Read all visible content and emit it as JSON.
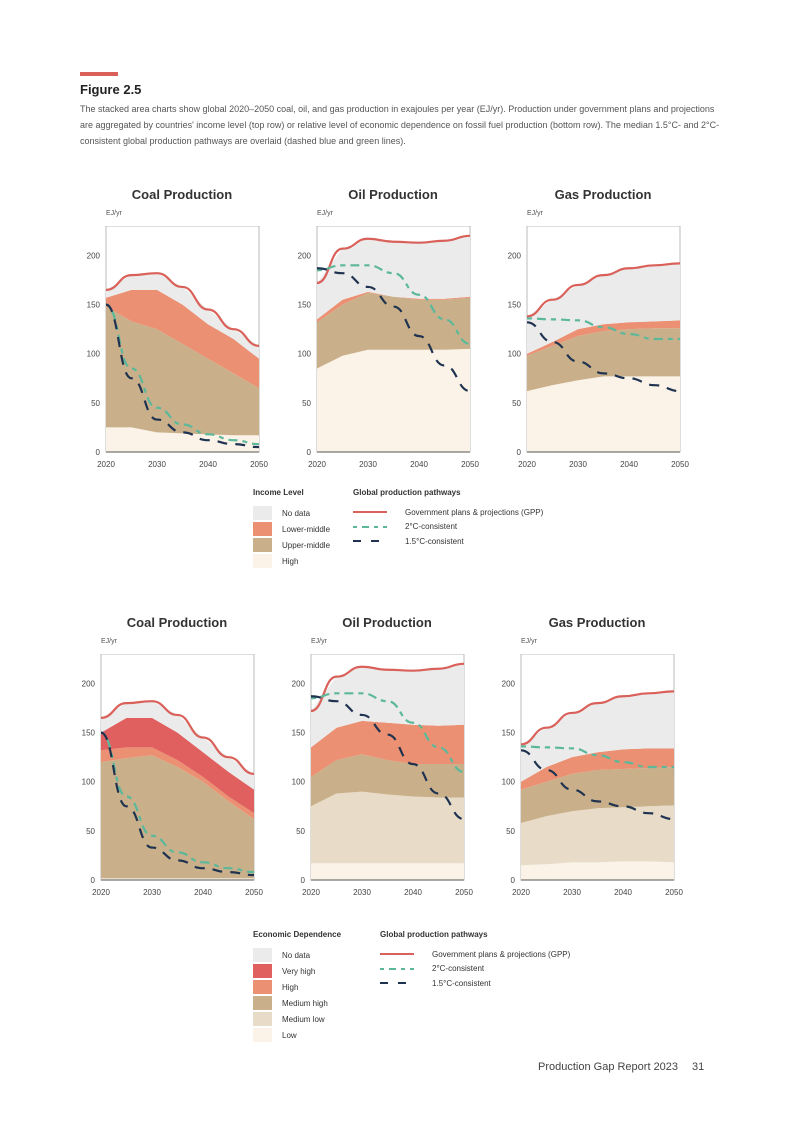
{
  "figure": {
    "label": "Figure 2.5",
    "caption": "The stacked area charts show global 2020–2050 coal, oil, and gas production in exajoules per year (EJ/yr). Production under government plans and projections are aggregated by countries' income level (top row) or relative level of economic dependence on fossil fuel production (bottom row). The median 1.5°C- and 2°C-consistent global production pathways are overlaid (dashed blue and green lines)."
  },
  "colors": {
    "no_data": "#ebebeb",
    "very_high": "#e0605f",
    "lower_middle": "#eb9072",
    "upper_middle": "#c9b08a",
    "medium_low": "#e8dcc8",
    "high_low": "#fbf3e8",
    "gpp": "#d9615a",
    "c2": "#5cb89a",
    "c15": "#1f3350"
  },
  "legend_top": {
    "title": "Income Level",
    "items": [
      "No data",
      "Lower-middle",
      "Upper-middle",
      "High"
    ]
  },
  "legend_bottom": {
    "title": "Economic Dependence",
    "items": [
      "No data",
      "Very high",
      "High",
      "Medium high",
      "Medium low",
      "Low"
    ]
  },
  "pathways": {
    "title": "Global production pathways",
    "gpp": "Government plans & projections (GPP)",
    "c2": "2°C-consistent",
    "c15": "1.5°C-consistent"
  },
  "footer": {
    "report": "Production Gap Report 2023",
    "page": "31"
  },
  "chart_data": [
    {
      "type": "area",
      "title": "Coal Production",
      "ylabel": "EJ/yr",
      "x": [
        2020,
        2025,
        2030,
        2035,
        2040,
        2045,
        2050
      ],
      "ylim": [
        0,
        230
      ],
      "yticks": [
        0,
        50,
        100,
        150,
        200
      ],
      "xticks": [
        2020,
        2030,
        2040,
        2050
      ],
      "layers": [
        {
          "name": "High",
          "color": "high_low",
          "values": [
            25,
            25,
            20,
            19,
            18,
            17,
            17
          ]
        },
        {
          "name": "Upper-middle",
          "color": "upper_middle",
          "values": [
            123,
            108,
            105,
            91,
            77,
            63,
            48
          ]
        },
        {
          "name": "Lower-middle",
          "color": "lower_middle",
          "values": [
            9,
            32,
            40,
            40,
            35,
            35,
            30
          ]
        },
        {
          "name": "No data",
          "color": "no_data",
          "values": [
            8,
            15,
            17,
            18,
            15,
            10,
            13
          ]
        }
      ],
      "lines": {
        "gpp": [
          165,
          180,
          182,
          168,
          145,
          125,
          108
        ],
        "c2": [
          150,
          85,
          45,
          28,
          18,
          12,
          8
        ],
        "c15": [
          150,
          75,
          33,
          20,
          12,
          8,
          5
        ]
      }
    },
    {
      "type": "area",
      "title": "Oil Production",
      "ylabel": "EJ/yr",
      "x": [
        2020,
        2025,
        2030,
        2035,
        2040,
        2045,
        2050
      ],
      "ylim": [
        0,
        230
      ],
      "yticks": [
        0,
        50,
        100,
        150,
        200
      ],
      "xticks": [
        2020,
        2030,
        2040,
        2050
      ],
      "layers": [
        {
          "name": "High",
          "color": "high_low",
          "values": [
            85,
            98,
            104,
            104,
            104,
            104,
            105
          ]
        },
        {
          "name": "Upper-middle",
          "color": "upper_middle",
          "values": [
            47,
            52,
            58,
            54,
            51,
            51,
            52
          ]
        },
        {
          "name": "Lower-middle",
          "color": "lower_middle",
          "values": [
            3,
            5,
            1,
            0,
            1,
            1,
            1
          ]
        },
        {
          "name": "No data",
          "color": "no_data",
          "values": [
            37,
            52,
            54,
            56,
            57,
            59,
            62
          ]
        }
      ],
      "lines": {
        "gpp": [
          172,
          207,
          217,
          214,
          213,
          215,
          220
        ],
        "c2": [
          185,
          190,
          190,
          182,
          160,
          135,
          110
        ],
        "c15": [
          187,
          182,
          168,
          148,
          118,
          88,
          62
        ]
      }
    },
    {
      "type": "area",
      "title": "Gas Production",
      "ylabel": "EJ/yr",
      "x": [
        2020,
        2025,
        2030,
        2035,
        2040,
        2045,
        2050
      ],
      "ylim": [
        0,
        230
      ],
      "yticks": [
        0,
        50,
        100,
        150,
        200
      ],
      "xticks": [
        2020,
        2030,
        2040,
        2050
      ],
      "layers": [
        {
          "name": "High",
          "color": "high_low",
          "values": [
            62,
            68,
            73,
            77,
            77,
            77,
            77
          ]
        },
        {
          "name": "Upper-middle",
          "color": "upper_middle",
          "values": [
            36,
            40,
            45,
            46,
            48,
            49,
            49
          ]
        },
        {
          "name": "Lower-middle",
          "color": "lower_middle",
          "values": [
            2,
            4,
            7,
            7,
            7,
            7,
            8
          ]
        },
        {
          "name": "No data",
          "color": "no_data",
          "values": [
            38,
            43,
            45,
            50,
            55,
            57,
            58
          ]
        }
      ],
      "lines": {
        "gpp": [
          138,
          155,
          170,
          180,
          187,
          190,
          192
        ],
        "c2": [
          136,
          135,
          134,
          127,
          120,
          115,
          115
        ],
        "c15": [
          132,
          112,
          92,
          80,
          75,
          68,
          62
        ]
      }
    },
    {
      "type": "area",
      "title": "Coal Production",
      "ylabel": "EJ/yr",
      "x": [
        2020,
        2025,
        2030,
        2035,
        2040,
        2045,
        2050
      ],
      "ylim": [
        0,
        230
      ],
      "yticks": [
        0,
        50,
        100,
        150,
        200
      ],
      "xticks": [
        2020,
        2030,
        2040,
        2050
      ],
      "layers": [
        {
          "name": "Low",
          "color": "high_low",
          "values": [
            1,
            1,
            1,
            1,
            1,
            1,
            1
          ]
        },
        {
          "name": "Medium low",
          "color": "medium_low",
          "values": [
            1,
            1,
            1,
            1,
            1,
            1,
            1
          ]
        },
        {
          "name": "Medium high",
          "color": "upper_middle",
          "values": [
            118,
            122,
            125,
            113,
            98,
            78,
            60
          ]
        },
        {
          "name": "High",
          "color": "lower_middle",
          "values": [
            12,
            11,
            8,
            7,
            5,
            5,
            6
          ]
        },
        {
          "name": "Very high",
          "color": "very_high",
          "values": [
            18,
            30,
            30,
            28,
            25,
            25,
            24
          ]
        },
        {
          "name": "No data",
          "color": "no_data",
          "values": [
            15,
            15,
            17,
            18,
            15,
            15,
            16
          ]
        }
      ],
      "lines": {
        "gpp": [
          165,
          180,
          182,
          168,
          145,
          125,
          108
        ],
        "c2": [
          150,
          85,
          45,
          28,
          18,
          12,
          8
        ],
        "c15": [
          150,
          75,
          33,
          20,
          12,
          8,
          5
        ]
      }
    },
    {
      "type": "area",
      "title": "Oil Production",
      "ylabel": "EJ/yr",
      "x": [
        2020,
        2025,
        2030,
        2035,
        2040,
        2045,
        2050
      ],
      "ylim": [
        0,
        230
      ],
      "yticks": [
        0,
        50,
        100,
        150,
        200
      ],
      "xticks": [
        2020,
        2030,
        2040,
        2050
      ],
      "layers": [
        {
          "name": "Low",
          "color": "high_low",
          "values": [
            17,
            17,
            17,
            17,
            17,
            17,
            17
          ]
        },
        {
          "name": "Medium low",
          "color": "medium_low",
          "values": [
            58,
            71,
            73,
            70,
            68,
            67,
            67
          ]
        },
        {
          "name": "Medium high",
          "color": "upper_middle",
          "values": [
            30,
            34,
            38,
            35,
            33,
            34,
            34
          ]
        },
        {
          "name": "High",
          "color": "lower_middle",
          "values": [
            30,
            33,
            34,
            38,
            40,
            39,
            40
          ]
        },
        {
          "name": "No data",
          "color": "no_data",
          "values": [
            37,
            52,
            55,
            54,
            55,
            58,
            62
          ]
        }
      ],
      "lines": {
        "gpp": [
          172,
          207,
          217,
          214,
          213,
          215,
          220
        ],
        "c2": [
          185,
          190,
          190,
          182,
          160,
          135,
          110
        ],
        "c15": [
          187,
          182,
          168,
          148,
          118,
          88,
          62
        ]
      }
    },
    {
      "type": "area",
      "title": "Gas Production",
      "ylabel": "EJ/yr",
      "x": [
        2020,
        2025,
        2030,
        2035,
        2040,
        2045,
        2050
      ],
      "ylim": [
        0,
        230
      ],
      "yticks": [
        0,
        50,
        100,
        150,
        200
      ],
      "xticks": [
        2020,
        2030,
        2040,
        2050
      ],
      "layers": [
        {
          "name": "Low",
          "color": "high_low",
          "values": [
            15,
            16,
            18,
            18,
            19,
            19,
            18
          ]
        },
        {
          "name": "Medium low",
          "color": "medium_low",
          "values": [
            43,
            49,
            52,
            55,
            55,
            56,
            58
          ]
        },
        {
          "name": "Medium high",
          "color": "upper_middle",
          "values": [
            34,
            35,
            38,
            39,
            39,
            39,
            39
          ]
        },
        {
          "name": "High",
          "color": "lower_middle",
          "values": [
            8,
            15,
            17,
            18,
            20,
            20,
            19
          ]
        },
        {
          "name": "No data",
          "color": "no_data",
          "values": [
            38,
            40,
            45,
            50,
            54,
            56,
            58
          ]
        }
      ],
      "lines": {
        "gpp": [
          138,
          155,
          170,
          180,
          187,
          190,
          192
        ],
        "c2": [
          136,
          135,
          134,
          127,
          120,
          115,
          115
        ],
        "c15": [
          132,
          112,
          92,
          80,
          75,
          68,
          62
        ]
      }
    }
  ]
}
